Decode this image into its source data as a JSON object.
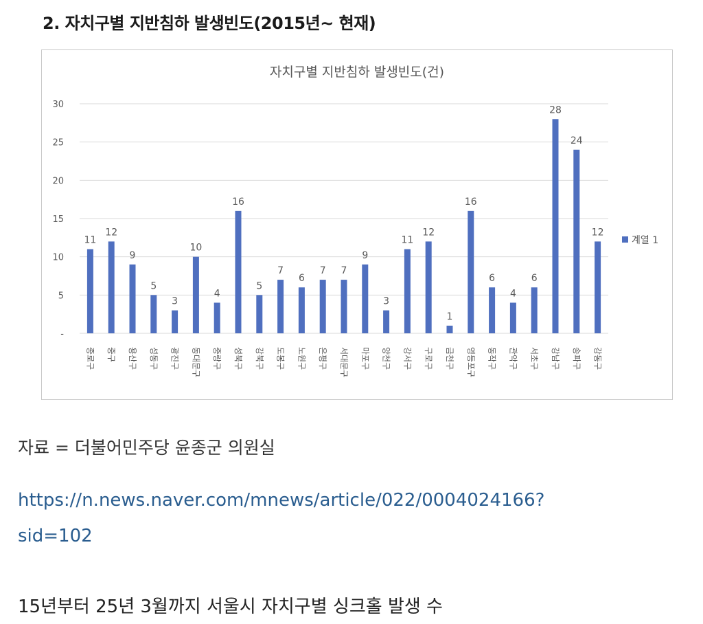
{
  "heading": "2. 자치구별 지반침하 발생빈도(2015년~ 현재)",
  "source_text": "자료 = 더불어민주당 윤종군 의원실",
  "link": {
    "line1": "https://n.news.naver.com/mnews/article/022/0004024166?",
    "line2": "sid=102"
  },
  "caption": "15년부터 25년 3월까지 서울시 자치구별 싱크홀 발생 수",
  "chart_data": {
    "type": "bar",
    "title": "자치구별 지반침하 발생빈도(건)",
    "categories": [
      "종로구",
      "중구",
      "용산구",
      "성동구",
      "광진구",
      "동대문구",
      "중랑구",
      "성북구",
      "강북구",
      "도봉구",
      "노원구",
      "은평구",
      "서대문구",
      "마포구",
      "양천구",
      "강서구",
      "구로구",
      "금천구",
      "영등포구",
      "동작구",
      "관악구",
      "서초구",
      "강남구",
      "송파구",
      "강동구"
    ],
    "series": [
      {
        "name": "계열 1",
        "values": [
          11,
          12,
          9,
          5,
          3,
          10,
          4,
          16,
          5,
          7,
          6,
          7,
          7,
          9,
          3,
          11,
          12,
          1,
          16,
          6,
          4,
          6,
          28,
          24,
          12
        ]
      }
    ],
    "yticks": [
      "-",
      "5",
      "10",
      "15",
      "20",
      "25",
      "30"
    ],
    "ylim": [
      0,
      30
    ],
    "grid": true,
    "legend": "right",
    "bar_color": "#4f6fbf",
    "grid_color": "#d9d9d9"
  }
}
